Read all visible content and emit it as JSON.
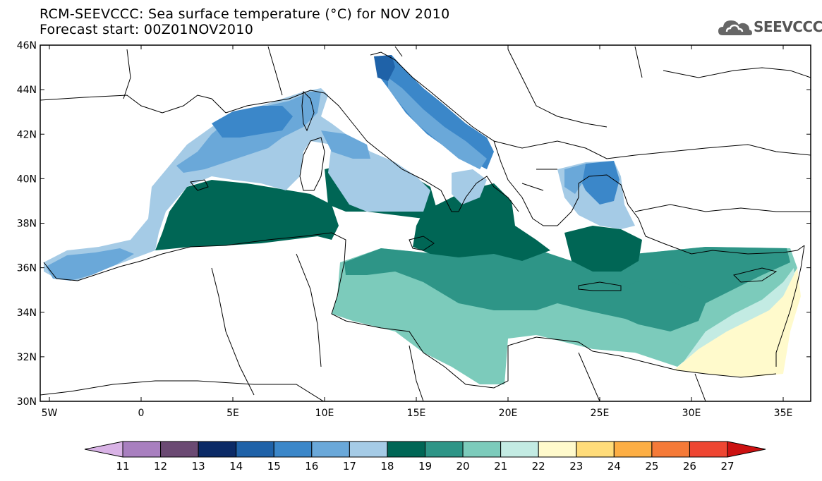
{
  "header": {
    "title": "RCM-SEEVCCC: Sea surface temperature (°C) for NOV 2010",
    "subtitle": "Forecast start: 00Z01NOV2010",
    "logo_text": "SEEVCCC"
  },
  "map": {
    "variable": "Sea surface temperature",
    "units": "°C",
    "period": "NOV 2010",
    "lon_range": [
      -5.5,
      36.5
    ],
    "lat_range": [
      30,
      46
    ],
    "lat_ticks": [
      "30N",
      "32N",
      "34N",
      "36N",
      "38N",
      "40N",
      "42N",
      "44N",
      "46N"
    ],
    "lon_ticks": [
      "5W",
      "0",
      "5E",
      "10E",
      "15E",
      "20E",
      "25E",
      "30E",
      "35E"
    ]
  },
  "colorbar": {
    "labels": [
      "11",
      "12",
      "13",
      "14",
      "15",
      "16",
      "17",
      "18",
      "19",
      "20",
      "21",
      "22",
      "23",
      "24",
      "25",
      "26",
      "27"
    ],
    "colors": [
      "#d9b3e6",
      "#a87fbf",
      "#6b4a73",
      "#0b2a66",
      "#1f62a8",
      "#3b87c9",
      "#6aa8d9",
      "#a5cbe6",
      "#006655",
      "#2e9587",
      "#7ccbbb",
      "#c3ebe3",
      "#fffacc",
      "#ffdc7a",
      "#fcae44",
      "#f57a38",
      "#ee4632",
      "#cc1111"
    ]
  },
  "regions": {
    "alboran": "16",
    "gulf_of_lion": "16",
    "balearic": "17",
    "tyrrhenian_north": "17",
    "north_adriatic": "15",
    "adriatic": "16",
    "north_aegean": "16",
    "algerian_basin": "19",
    "tyrrhenian_south": "19",
    "ionian": "19",
    "south_aegean": "19",
    "central_med": "20",
    "libyan_sea": "21",
    "levantine": "21",
    "southeast_levantine": "22"
  }
}
